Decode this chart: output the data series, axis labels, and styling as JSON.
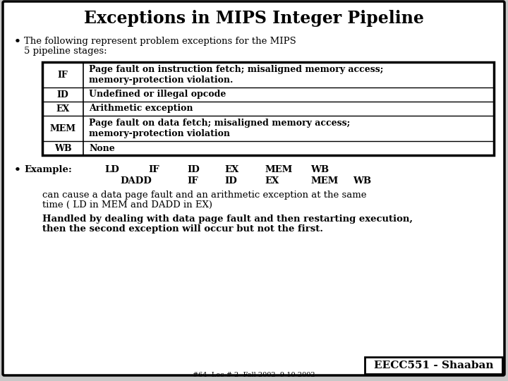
{
  "title": "Exceptions in MIPS Integer Pipeline",
  "bg_color": "#c8c8c8",
  "bullet1_line1": "The following represent problem exceptions for the MIPS",
  "bullet1_line2": "5 pipeline stages:",
  "table_rows": [
    [
      "IF",
      "Page fault on instruction fetch; misaligned memory access;",
      "memory-protection violation."
    ],
    [
      "ID",
      "Undefined or illegal opcode",
      ""
    ],
    [
      "EX",
      "Arithmetic exception",
      ""
    ],
    [
      "MEM",
      "Page fault on data fetch; misaligned memory access;",
      "memory-protection violation"
    ],
    [
      "WB",
      "None",
      ""
    ]
  ],
  "ex_label": "Example:",
  "ex_r1": [
    [
      "LD",
      148
    ],
    [
      "IF",
      210
    ],
    [
      "ID",
      265
    ],
    [
      "EX",
      318
    ],
    [
      "MEM",
      375
    ],
    [
      "WB",
      440
    ]
  ],
  "ex_r2": [
    [
      "DADD",
      170
    ],
    [
      "IF",
      265
    ],
    [
      "ID",
      318
    ],
    [
      "EX",
      375
    ],
    [
      "MEM",
      440
    ],
    [
      "WB",
      500
    ]
  ],
  "body_text1_l1": "can cause a data page fault and an arithmetic exception at the same",
  "body_text1_l2": "time ( LD in MEM and DADD in EX)",
  "body_text2_l1": "Handled by dealing with data page fault and then restarting execution,",
  "body_text2_l2": "then the second exception will occur but not the first.",
  "footer": "EECC551 - Shaaban",
  "footer_small": "#64  Lec # 2  Fall 2002  9-10-2002",
  "title_fontsize": 17,
  "body_fontsize": 9.5,
  "table_fontsize": 9,
  "footer_fontsize": 11
}
